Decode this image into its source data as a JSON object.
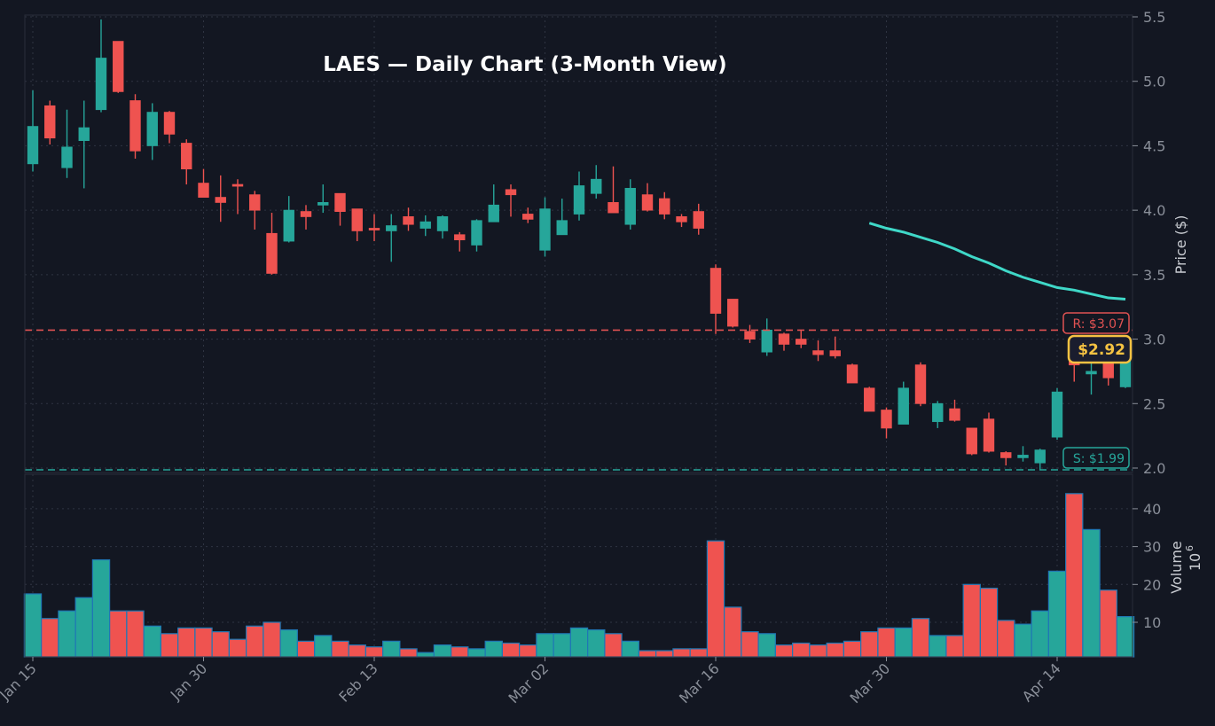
{
  "chart_data": {
    "type": "candlestick",
    "title": "LAES — Daily Chart (3-Month View)",
    "x_ticks": [
      {
        "index": 0,
        "label": "Jan 15"
      },
      {
        "index": 10,
        "label": "Jan 30"
      },
      {
        "index": 20,
        "label": "Feb 13"
      },
      {
        "index": 30,
        "label": "Mar 02"
      },
      {
        "index": 40,
        "label": "Mar 16"
      },
      {
        "index": 50,
        "label": "Mar 30"
      },
      {
        "index": 60,
        "label": "Apr 14"
      }
    ],
    "price_axis": {
      "label": "Price ($)",
      "ylim": [
        2.0,
        5.5
      ],
      "ticks": [
        "2.0",
        "2.5",
        "3.0",
        "3.5",
        "4.0",
        "4.5",
        "5.0",
        "5.5"
      ],
      "tick_values": [
        2.0,
        2.5,
        3.0,
        3.5,
        4.0,
        4.5,
        5.0,
        5.5
      ]
    },
    "volume_axis": {
      "label": "Volume",
      "unit": "10",
      "unit_exp": "6",
      "ticks": [
        "10",
        "20",
        "30",
        "40"
      ],
      "tick_values": [
        10,
        20,
        30,
        40
      ],
      "ylim": [
        0.8,
        47
      ]
    },
    "grid": true,
    "colors": {
      "background": "#131722",
      "up": "#26a69a",
      "down": "#ef5350",
      "ma": "#3fd8c8",
      "resistance": "#e05252",
      "support": "#26a69a",
      "current": "#f5c242",
      "volume_edge": "#1f77b4"
    },
    "ohlc": [
      [
        4.36,
        4.93,
        4.3,
        4.65
      ],
      [
        4.81,
        4.85,
        4.51,
        4.56
      ],
      [
        4.33,
        4.78,
        4.25,
        4.49
      ],
      [
        4.54,
        4.85,
        4.17,
        4.64
      ],
      [
        4.78,
        5.48,
        4.76,
        5.18
      ],
      [
        5.31,
        5.31,
        4.91,
        4.92
      ],
      [
        4.85,
        4.9,
        4.4,
        4.46
      ],
      [
        4.5,
        4.83,
        4.39,
        4.76
      ],
      [
        4.76,
        4.77,
        4.52,
        4.59
      ],
      [
        4.52,
        4.55,
        4.2,
        4.32
      ],
      [
        4.21,
        4.32,
        4.1,
        4.1
      ],
      [
        4.1,
        4.27,
        3.91,
        4.06
      ],
      [
        4.2,
        4.24,
        3.97,
        4.19
      ],
      [
        4.12,
        4.15,
        3.85,
        4.0
      ],
      [
        3.82,
        3.98,
        3.5,
        3.51
      ],
      [
        3.76,
        4.11,
        3.75,
        4.0
      ],
      [
        3.99,
        4.04,
        3.85,
        3.95
      ],
      [
        4.04,
        4.2,
        3.98,
        4.06
      ],
      [
        4.13,
        4.13,
        3.88,
        3.99
      ],
      [
        4.01,
        4.01,
        3.76,
        3.84
      ],
      [
        3.86,
        3.97,
        3.76,
        3.85
      ],
      [
        3.84,
        3.97,
        3.6,
        3.88
      ],
      [
        3.95,
        4.02,
        3.84,
        3.89
      ],
      [
        3.86,
        3.96,
        3.8,
        3.91
      ],
      [
        3.84,
        3.96,
        3.78,
        3.95
      ],
      [
        3.81,
        3.83,
        3.68,
        3.77
      ],
      [
        3.73,
        3.93,
        3.68,
        3.92
      ],
      [
        3.91,
        4.2,
        3.91,
        4.04
      ],
      [
        4.16,
        4.2,
        3.95,
        4.12
      ],
      [
        3.97,
        4.02,
        3.9,
        3.93
      ],
      [
        3.69,
        4.1,
        3.64,
        4.01
      ],
      [
        3.81,
        4.09,
        3.81,
        3.92
      ],
      [
        3.97,
        4.3,
        3.92,
        4.19
      ],
      [
        4.13,
        4.35,
        4.09,
        4.24
      ],
      [
        4.06,
        4.34,
        3.98,
        3.98
      ],
      [
        3.89,
        4.24,
        3.85,
        4.17
      ],
      [
        4.12,
        4.21,
        3.99,
        4.0
      ],
      [
        4.09,
        4.14,
        3.93,
        3.97
      ],
      [
        3.95,
        3.97,
        3.87,
        3.91
      ],
      [
        3.99,
        4.05,
        3.81,
        3.86
      ],
      [
        3.55,
        3.58,
        3.04,
        3.2
      ],
      [
        3.31,
        3.31,
        3.09,
        3.1
      ],
      [
        3.06,
        3.11,
        2.97,
        3.0
      ],
      [
        2.9,
        3.16,
        2.87,
        3.07
      ],
      [
        3.04,
        3.05,
        2.91,
        2.96
      ],
      [
        3.0,
        3.07,
        2.93,
        2.96
      ],
      [
        2.91,
        2.99,
        2.83,
        2.88
      ],
      [
        2.91,
        3.02,
        2.85,
        2.87
      ],
      [
        2.8,
        2.81,
        2.66,
        2.66
      ],
      [
        2.62,
        2.63,
        2.44,
        2.44
      ],
      [
        2.45,
        2.47,
        2.23,
        2.31
      ],
      [
        2.34,
        2.67,
        2.34,
        2.62
      ],
      [
        2.8,
        2.82,
        2.48,
        2.5
      ],
      [
        2.36,
        2.52,
        2.31,
        2.5
      ],
      [
        2.46,
        2.53,
        2.36,
        2.37
      ],
      [
        2.31,
        2.31,
        2.1,
        2.11
      ],
      [
        2.38,
        2.43,
        2.12,
        2.13
      ],
      [
        2.12,
        2.13,
        2.02,
        2.08
      ],
      [
        2.08,
        2.17,
        2.05,
        2.1
      ],
      [
        2.04,
        2.15,
        1.99,
        2.14
      ],
      [
        2.24,
        2.62,
        2.22,
        2.59
      ],
      [
        2.84,
        2.87,
        2.67,
        2.8
      ],
      [
        2.73,
        2.83,
        2.57,
        2.75
      ],
      [
        2.88,
        2.9,
        2.64,
        2.7
      ],
      [
        2.63,
        2.93,
        2.62,
        2.92
      ]
    ],
    "volume": [
      17.5,
      11,
      13,
      16.5,
      26.5,
      13,
      13,
      9,
      7,
      8.5,
      8.5,
      7.5,
      5.5,
      9,
      10,
      8,
      5,
      6.5,
      5,
      4,
      3.5,
      5,
      3,
      2,
      4,
      3.5,
      3,
      5,
      4.5,
      4,
      7,
      7,
      8.5,
      8,
      7,
      5,
      2.5,
      2.5,
      3,
      3,
      31.5,
      14,
      7.5,
      7,
      4,
      4.5,
      4,
      4.5,
      5,
      7.5,
      8.5,
      8.5,
      11,
      6.5,
      6.5,
      20,
      19,
      10.5,
      9.5,
      13,
      23.5,
      44,
      34.5,
      18.5,
      11.5
    ],
    "moving_average": {
      "start_index": 49,
      "values": [
        3.9,
        3.86,
        3.83,
        3.79,
        3.75,
        3.7,
        3.64,
        3.59,
        3.53,
        3.48,
        3.44,
        3.4,
        3.38,
        3.35,
        3.32,
        3.31
      ]
    },
    "resistance": {
      "value": 3.07,
      "label": "R: $3.07"
    },
    "support": {
      "value": 1.99,
      "label": "S: $1.99"
    },
    "current_price": {
      "value": 2.92,
      "label": "$2.92"
    }
  }
}
